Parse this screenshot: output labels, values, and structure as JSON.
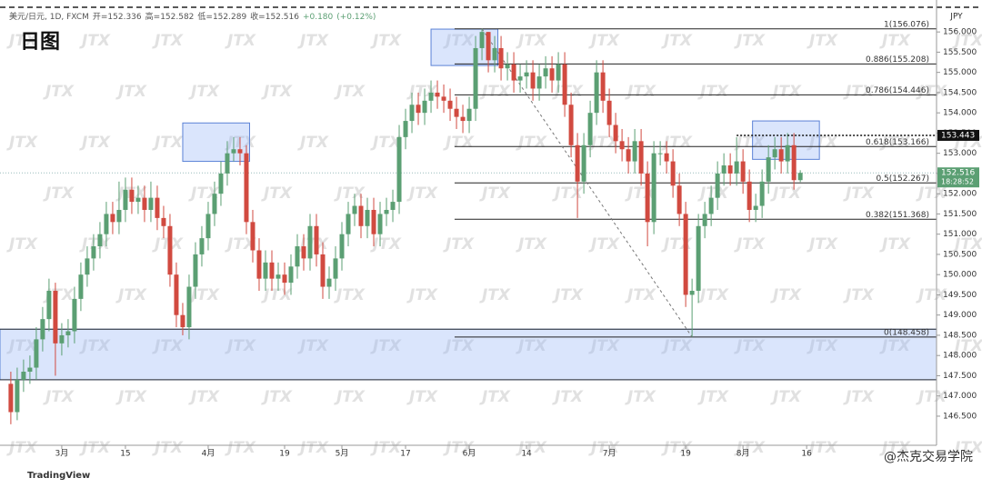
{
  "chart_data": {
    "type": "candlestick",
    "title": "日图",
    "symbol": "美元/日元, 1D, FXCM",
    "ohlc_labels": [
      "开=",
      "高=",
      "低=",
      "收="
    ],
    "change": "+0.180",
    "change_pct": "(+0.12%)",
    "currency": "JPY",
    "countdown": "18:28:52",
    "watermark": "JTX",
    "brand": "TradingView",
    "credit": "@杰克交易学院",
    "up_color": "#5b9f73",
    "down_color": "#d14a40",
    "xlim": [
      -1.7,
      145.4
    ],
    "ylim": [
      145.78,
      156.79
    ],
    "open": [
      147.3,
      146.6,
      147.4,
      147.6,
      147.7,
      148.4,
      148.9,
      149.6,
      148.3,
      148.5,
      148.6,
      149.4,
      150.0,
      150.4,
      150.7,
      151.0,
      151.5,
      151.3,
      151.6,
      152.1,
      151.8,
      151.9,
      151.6,
      151.9,
      151.4,
      151.2,
      150.0,
      149.0,
      148.7,
      149.7,
      150.5,
      150.9,
      151.5,
      152.0,
      152.5,
      153.0,
      153.1,
      153.0,
      151.3,
      150.6,
      149.9,
      150.3,
      149.9,
      150.0,
      149.8,
      150.2,
      150.7,
      150.4,
      151.2,
      150.5,
      149.7,
      149.9,
      150.4,
      151.0,
      151.5,
      151.7,
      151.2,
      151.6,
      151.0,
      151.5,
      151.6,
      151.8,
      153.4,
      153.8,
      154.2,
      154.0,
      154.3,
      154.5,
      154.4,
      154.3,
      154.1,
      153.9,
      153.8,
      154.1,
      155.6,
      156.0,
      155.3,
      155.6,
      155.1,
      155.2,
      154.8,
      154.9,
      155.0,
      154.6,
      154.9,
      155.1,
      154.8,
      155.2,
      154.2,
      153.2,
      152.3,
      153.2,
      154.0,
      155.0,
      154.3,
      153.7,
      153.3,
      153.1,
      152.8,
      153.3,
      152.5,
      151.3,
      153.0,
      153.0,
      152.8,
      152.2,
      151.5,
      149.5,
      149.6,
      151.2,
      151.5,
      151.9,
      152.5,
      152.7,
      152.5,
      152.8,
      152.3,
      151.6,
      151.7,
      152.3,
      152.9,
      153.1,
      152.8,
      153.2,
      152.336
    ],
    "high": [
      147.6,
      147.7,
      147.9,
      148.0,
      148.7,
      149.2,
      149.9,
      149.8,
      148.8,
      148.9,
      149.7,
      150.3,
      150.7,
      151.0,
      151.3,
      151.8,
      151.8,
      152.3,
      152.4,
      152.4,
      152.2,
      152.2,
      152.3,
      152.2,
      151.7,
      151.5,
      150.3,
      149.3,
      150.0,
      150.8,
      151.2,
      151.8,
      152.3,
      152.8,
      153.3,
      153.4,
      153.4,
      153.2,
      151.6,
      150.9,
      150.6,
      150.6,
      150.3,
      150.3,
      150.5,
      151.0,
      151.0,
      151.5,
      151.5,
      150.8,
      150.2,
      150.7,
      151.3,
      151.8,
      152.0,
      152.0,
      151.9,
      151.9,
      151.8,
      151.9,
      152.1,
      153.7,
      154.1,
      154.5,
      154.5,
      154.6,
      154.8,
      154.8,
      154.7,
      154.6,
      154.4,
      154.2,
      154.4,
      155.9,
      156.076,
      156.0,
      155.9,
      155.9,
      155.5,
      155.5,
      155.2,
      155.3,
      155.3,
      155.2,
      155.4,
      155.4,
      155.5,
      155.5,
      154.5,
      153.5,
      153.5,
      154.3,
      155.3,
      155.3,
      154.6,
      154.0,
      153.6,
      153.4,
      153.6,
      153.6,
      152.8,
      153.3,
      153.3,
      153.3,
      153.1,
      152.5,
      151.8,
      149.9,
      151.5,
      151.8,
      152.2,
      152.8,
      153.0,
      153.0,
      153.4,
      153.1,
      152.6,
      152.0,
      152.6,
      153.2,
      153.4,
      153.4,
      153.5,
      153.5,
      152.582
    ],
    "low": [
      146.3,
      146.4,
      147.1,
      147.3,
      147.4,
      148.1,
      148.6,
      147.5,
      148.0,
      148.2,
      148.3,
      149.1,
      149.7,
      150.1,
      150.4,
      150.7,
      151.0,
      151.0,
      151.3,
      151.5,
      151.5,
      151.3,
      151.3,
      151.1,
      150.9,
      149.7,
      148.7,
      148.5,
      148.4,
      149.4,
      150.2,
      150.6,
      151.2,
      151.7,
      152.2,
      152.8,
      152.7,
      151.0,
      150.3,
      149.6,
      149.6,
      149.6,
      149.6,
      149.5,
      149.5,
      149.9,
      150.1,
      150.1,
      150.2,
      149.4,
      149.4,
      149.6,
      150.1,
      150.7,
      151.2,
      150.9,
      150.9,
      150.7,
      150.7,
      151.2,
      151.3,
      151.5,
      153.1,
      153.5,
      153.7,
      153.7,
      154.0,
      154.1,
      154.0,
      153.8,
      153.6,
      153.5,
      153.5,
      153.8,
      155.3,
      155.0,
      155.0,
      154.8,
      154.8,
      154.5,
      154.5,
      154.6,
      154.3,
      154.3,
      154.6,
      154.5,
      154.5,
      153.9,
      152.9,
      151.4,
      152.0,
      152.9,
      153.7,
      154.0,
      153.4,
      153.0,
      152.8,
      152.5,
      152.5,
      152.2,
      150.7,
      151.0,
      152.7,
      152.5,
      151.9,
      151.2,
      149.2,
      148.458,
      149.3,
      150.9,
      151.2,
      151.6,
      152.2,
      152.2,
      152.2,
      152.0,
      151.3,
      151.3,
      151.4,
      152.0,
      152.6,
      152.5,
      152.5,
      152.1,
      152.289
    ],
    "close": [
      146.6,
      147.4,
      147.6,
      147.7,
      148.4,
      148.9,
      149.6,
      148.3,
      148.5,
      148.6,
      149.4,
      150.0,
      150.4,
      150.7,
      151.0,
      151.5,
      151.3,
      151.6,
      152.1,
      151.8,
      151.9,
      151.6,
      151.9,
      151.4,
      151.2,
      150.0,
      149.0,
      148.7,
      149.7,
      150.5,
      150.9,
      151.5,
      152.0,
      152.5,
      153.0,
      153.1,
      153.0,
      151.3,
      150.6,
      149.9,
      150.3,
      149.9,
      150.0,
      149.8,
      150.2,
      150.7,
      150.4,
      151.2,
      150.5,
      149.7,
      149.9,
      150.4,
      151.0,
      151.5,
      151.7,
      151.2,
      151.6,
      151.0,
      151.5,
      151.6,
      151.8,
      153.4,
      153.8,
      154.2,
      154.0,
      154.3,
      154.5,
      154.4,
      154.3,
      154.1,
      153.9,
      153.8,
      154.1,
      155.6,
      156.0,
      155.3,
      155.6,
      155.1,
      155.2,
      154.8,
      154.9,
      155.0,
      154.6,
      154.9,
      155.1,
      154.8,
      155.2,
      154.2,
      153.2,
      152.3,
      153.2,
      154.0,
      155.0,
      154.3,
      153.7,
      153.3,
      153.1,
      152.8,
      153.3,
      152.5,
      151.3,
      153.0,
      153.0,
      152.8,
      152.2,
      151.5,
      149.5,
      149.6,
      151.2,
      151.5,
      151.9,
      152.5,
      152.7,
      152.5,
      152.8,
      152.3,
      151.6,
      151.7,
      152.3,
      152.9,
      153.1,
      152.8,
      153.2,
      152.336,
      152.516
    ],
    "yticks": [
      {
        "value": 146.5,
        "label": "146.500"
      },
      {
        "value": 147,
        "label": "147.000"
      },
      {
        "value": 147.5,
        "label": "147.500"
      },
      {
        "value": 148,
        "label": "148.000"
      },
      {
        "value": 148.5,
        "label": "148.500"
      },
      {
        "value": 149,
        "label": "149.000"
      },
      {
        "value": 149.5,
        "label": "149.500"
      },
      {
        "value": 150,
        "label": "150.000"
      },
      {
        "value": 150.5,
        "label": "150.500"
      },
      {
        "value": 151,
        "label": "151.000"
      },
      {
        "value": 151.5,
        "label": "151.500"
      },
      {
        "value": 152,
        "label": "152.000"
      },
      {
        "value": 152.5,
        "label": "152.500"
      },
      {
        "value": 153,
        "label": "153.000"
      },
      {
        "value": 153.5,
        "label": "153.500"
      },
      {
        "value": 154,
        "label": "154.000"
      },
      {
        "value": 154.5,
        "label": "154.500"
      },
      {
        "value": 155,
        "label": "155.000"
      },
      {
        "value": 155.5,
        "label": "155.500"
      },
      {
        "value": 156,
        "label": "156.000"
      }
    ],
    "xticks": [
      {
        "value": 8,
        "label": "3月"
      },
      {
        "value": 18,
        "label": "15"
      },
      {
        "value": 31,
        "label": "4月"
      },
      {
        "value": 43,
        "label": "19"
      },
      {
        "value": 52,
        "label": "5月"
      },
      {
        "value": 62,
        "label": "17"
      },
      {
        "value": 72,
        "label": "6月"
      },
      {
        "value": 81,
        "label": "14"
      },
      {
        "value": 94,
        "label": "7月"
      },
      {
        "value": 106,
        "label": "19"
      },
      {
        "value": 115,
        "label": "8月"
      },
      {
        "value": 125,
        "label": "16"
      }
    ],
    "fib_levels": [
      {
        "value": 156.076,
        "label": "1(156.076)"
      },
      {
        "value": 155.208,
        "label": "0.886(155.208)"
      },
      {
        "value": 154.446,
        "label": "0.786(154.446)"
      },
      {
        "value": 153.166,
        "label": "0.618(153.166)"
      },
      {
        "value": 152.267,
        "label": "0.5(152.267)"
      },
      {
        "value": 151.368,
        "label": "0.382(151.368)"
      },
      {
        "value": 148.458,
        "label": "0(148.458)"
      }
    ],
    "fib_start": 69.7,
    "swing_index": [
      74,
      107
    ],
    "zones": [
      {
        "x": [
          -1.7,
          145.4
        ],
        "y": [
          147.4,
          148.65
        ]
      },
      {
        "x": [
          27,
          37.5
        ],
        "y": [
          152.8,
          153.75
        ]
      },
      {
        "x": [
          66,
          76.5
        ],
        "y": [
          155.17,
          156.07
        ]
      },
      {
        "x": [
          116.5,
          127
        ],
        "y": [
          152.85,
          153.8
        ]
      }
    ],
    "levels": [
      148.65,
      147.4
    ],
    "marker": {
      "value": 153.443,
      "from": 114
    },
    "alert_value": 156.61
  }
}
